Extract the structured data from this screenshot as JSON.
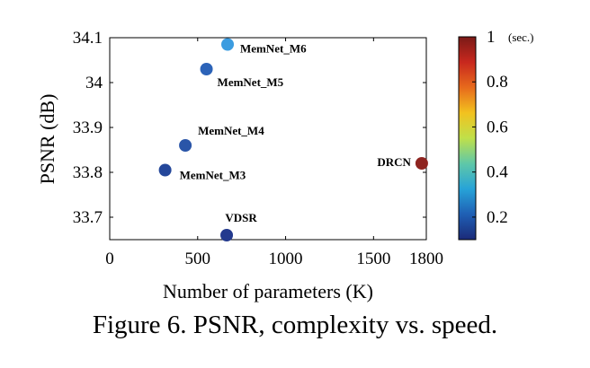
{
  "chart_data": {
    "type": "scatter",
    "xlabel": "Number of parameters (K)",
    "ylabel": "PSNR (dB)",
    "xlim": [
      0,
      1800
    ],
    "ylim": [
      33.65,
      34.1
    ],
    "xticks": [
      0,
      500,
      1000,
      1500,
      1800
    ],
    "yticks": [
      33.7,
      33.8,
      33.9,
      34,
      34.1
    ],
    "xtick_labels": [
      "0",
      "500",
      "1000",
      "1500",
      "1800"
    ],
    "ytick_labels": [
      "33.7",
      "33.8",
      "33.9",
      "34",
      "34.1"
    ],
    "colorbar": {
      "range": [
        0.1,
        1.0
      ],
      "ticks": [
        0.2,
        0.4,
        0.6,
        0.8,
        1
      ],
      "tick_labels": [
        "0.2",
        "0.4",
        "0.6",
        "0.8",
        "1"
      ],
      "unit": "(sec.)",
      "colormap": [
        "#1b2a78",
        "#1f5fb4",
        "#27a3d8",
        "#5fc8a8",
        "#bfe04a",
        "#f2c21f",
        "#e76a1c",
        "#c8281e",
        "#7a1a17"
      ]
    },
    "points": [
      {
        "label": "MemNet_M3",
        "x": 315,
        "y": 33.805,
        "speed": 0.16,
        "color": "#24479a"
      },
      {
        "label": "MemNet_M4",
        "x": 430,
        "y": 33.86,
        "speed": 0.19,
        "color": "#2a55a8"
      },
      {
        "label": "MemNet_M5",
        "x": 550,
        "y": 34.03,
        "speed": 0.25,
        "color": "#2c63b8"
      },
      {
        "label": "MemNet_M6",
        "x": 670,
        "y": 34.085,
        "speed": 0.36,
        "color": "#3b9ce0"
      },
      {
        "label": "VDSR",
        "x": 665,
        "y": 33.66,
        "speed": 0.12,
        "color": "#243a8e"
      },
      {
        "label": "DRCN",
        "x": 1774,
        "y": 33.82,
        "speed": 0.97,
        "color": "#8e2420"
      }
    ]
  },
  "caption": "Figure 6. PSNR, complexity vs. speed."
}
